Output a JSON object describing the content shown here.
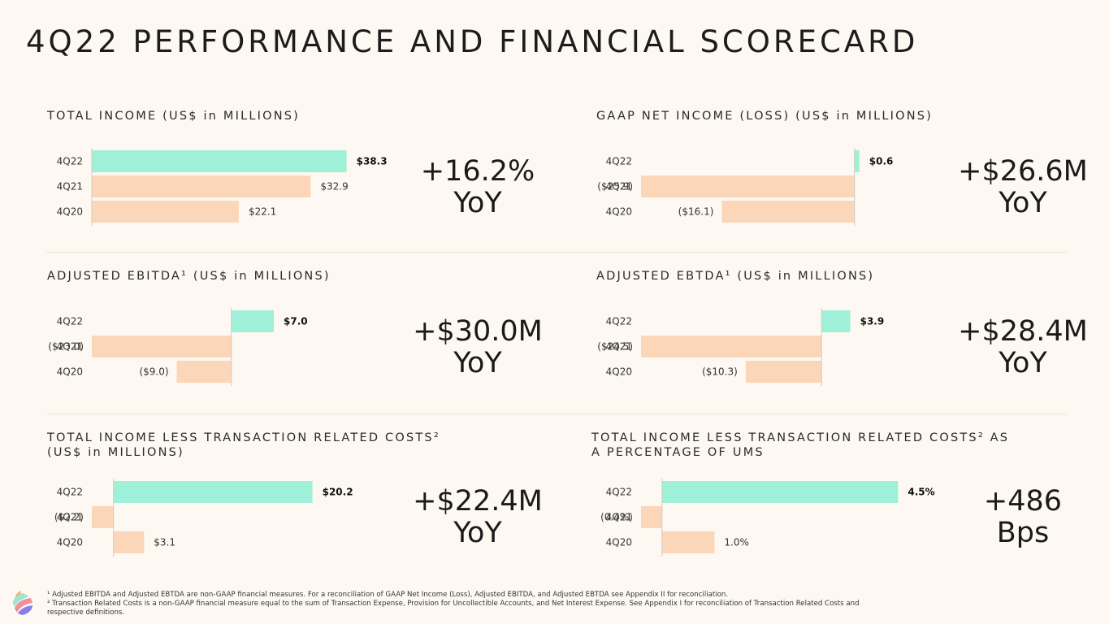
{
  "title": "4Q22 PERFORMANCE AND FINANCIAL SCORECARD",
  "colors": {
    "current": "#9ff0d8",
    "prior": "#fcd6b8",
    "axis": "#cfcac2"
  },
  "panels": [
    {
      "id": "total-income",
      "title_lines": [
        "TOTAL INCOME (US$ in MILLIONS)"
      ],
      "change_lines": [
        "+16.2%",
        "YoY"
      ],
      "chart_data": {
        "type": "bar",
        "orientation": "horizontal",
        "title": "TOTAL INCOME (US$ in MILLIONS)",
        "categories": [
          "4Q22",
          "4Q21",
          "4Q20"
        ],
        "values": [
          38.3,
          32.9,
          22.1
        ],
        "value_labels": [
          "$38.3",
          "$32.9",
          "$22.1"
        ],
        "xlim": [
          0,
          38.3
        ],
        "plot_width_ratio": 0.56
      }
    },
    {
      "id": "gaap-net-income",
      "title_lines": [
        "GAAP NET INCOME (LOSS) (US$ in MILLIONS)"
      ],
      "change_lines": [
        "+$26.6M",
        "YoY"
      ],
      "chart_data": {
        "type": "bar",
        "orientation": "horizontal",
        "title": "GAAP NET INCOME (LOSS) (US$ in MILLIONS)",
        "categories": [
          "4Q22",
          "4Q21",
          "4Q20"
        ],
        "values": [
          0.6,
          -25.9,
          -16.1
        ],
        "value_labels": [
          "$0.6",
          "($25.9)",
          "($16.1)"
        ],
        "xlim": [
          -25.9,
          0.6
        ],
        "plot_width_ratio": 0.48
      }
    },
    {
      "id": "adjusted-ebitda",
      "title_lines": [
        "ADJUSTED EBITDA¹ (US$ in MILLIONS)"
      ],
      "change_lines": [
        "+$30.0M",
        "YoY"
      ],
      "chart_data": {
        "type": "bar",
        "orientation": "horizontal",
        "title": "ADJUSTED EBITDA¹ (US$ in MILLIONS)",
        "categories": [
          "4Q22",
          "4Q21",
          "4Q20"
        ],
        "values": [
          7.0,
          -23.0,
          -9.0
        ],
        "value_labels": [
          "$7.0",
          "($23.0)",
          "($9.0)"
        ],
        "xlim": [
          -23.0,
          7.0
        ],
        "plot_width_ratio": 0.4
      }
    },
    {
      "id": "adjusted-ebtda",
      "title_lines": [
        "ADJUSTED EBTDA¹ (US$ in MILLIONS)"
      ],
      "change_lines": [
        "+$28.4M",
        "YoY"
      ],
      "chart_data": {
        "type": "bar",
        "orientation": "horizontal",
        "title": "ADJUSTED EBTDA¹ (US$ in MILLIONS)",
        "categories": [
          "4Q22",
          "4Q21",
          "4Q20"
        ],
        "values": [
          3.9,
          -24.5,
          -10.3
        ],
        "value_labels": [
          "$3.9",
          "($24.5)",
          "($10.3)"
        ],
        "xlim": [
          -24.5,
          3.9
        ],
        "plot_width_ratio": 0.46
      }
    },
    {
      "id": "income-less-costs",
      "title_lines": [
        "TOTAL INCOME LESS TRANSACTION RELATED COSTS²",
        "(US$ in MILLIONS)"
      ],
      "change_lines": [
        "+$22.4M",
        "YoY"
      ],
      "chart_data": {
        "type": "bar",
        "orientation": "horizontal",
        "title": "TOTAL INCOME LESS TRANSACTION RELATED COSTS² (US$ in MILLIONS)",
        "categories": [
          "4Q22",
          "4Q21",
          "4Q20"
        ],
        "values": [
          20.2,
          -2.2,
          3.1
        ],
        "value_labels": [
          "$20.2",
          "($2.2)",
          "$3.1"
        ],
        "xlim": [
          -2.2,
          20.2
        ],
        "plot_width_ratio": 0.485
      }
    },
    {
      "id": "income-less-costs-pct",
      "title_lines": [
        "TOTAL INCOME LESS TRANSACTION RELATED COSTS² AS",
        "A PERCENTAGE OF UMS"
      ],
      "change_lines": [
        "+486",
        "Bps"
      ],
      "chart_data": {
        "type": "bar",
        "orientation": "horizontal",
        "title": "TOTAL INCOME LESS TRANSACTION RELATED COSTS² AS A PERCENTAGE OF UMS",
        "categories": [
          "4Q22",
          "4Q21",
          "4Q20"
        ],
        "values": [
          4.5,
          -0.4,
          1.0
        ],
        "value_labels": [
          "4.5%",
          "(0.4%)",
          "1.0%"
        ],
        "xlim": [
          -0.4,
          4.5
        ],
        "plot_width_ratio": 0.565
      }
    }
  ],
  "footnotes": [
    "¹ Adjusted EBITDA and Adjusted EBTDA are non-GAAP financial measures. For a reconciliation of GAAP Net Income (Loss), Adjusted EBITDA, and Adjusted EBTDA see Appendix II for reconciliation.",
    "² Transaction Related Costs is a non-GAAP financial measure equal to the sum of Transaction Expense, Provision for Uncollectible Accounts, and Net Interest Expense. See Appendix I for reconciliation of Transaction Related Costs and respective definitions."
  ]
}
